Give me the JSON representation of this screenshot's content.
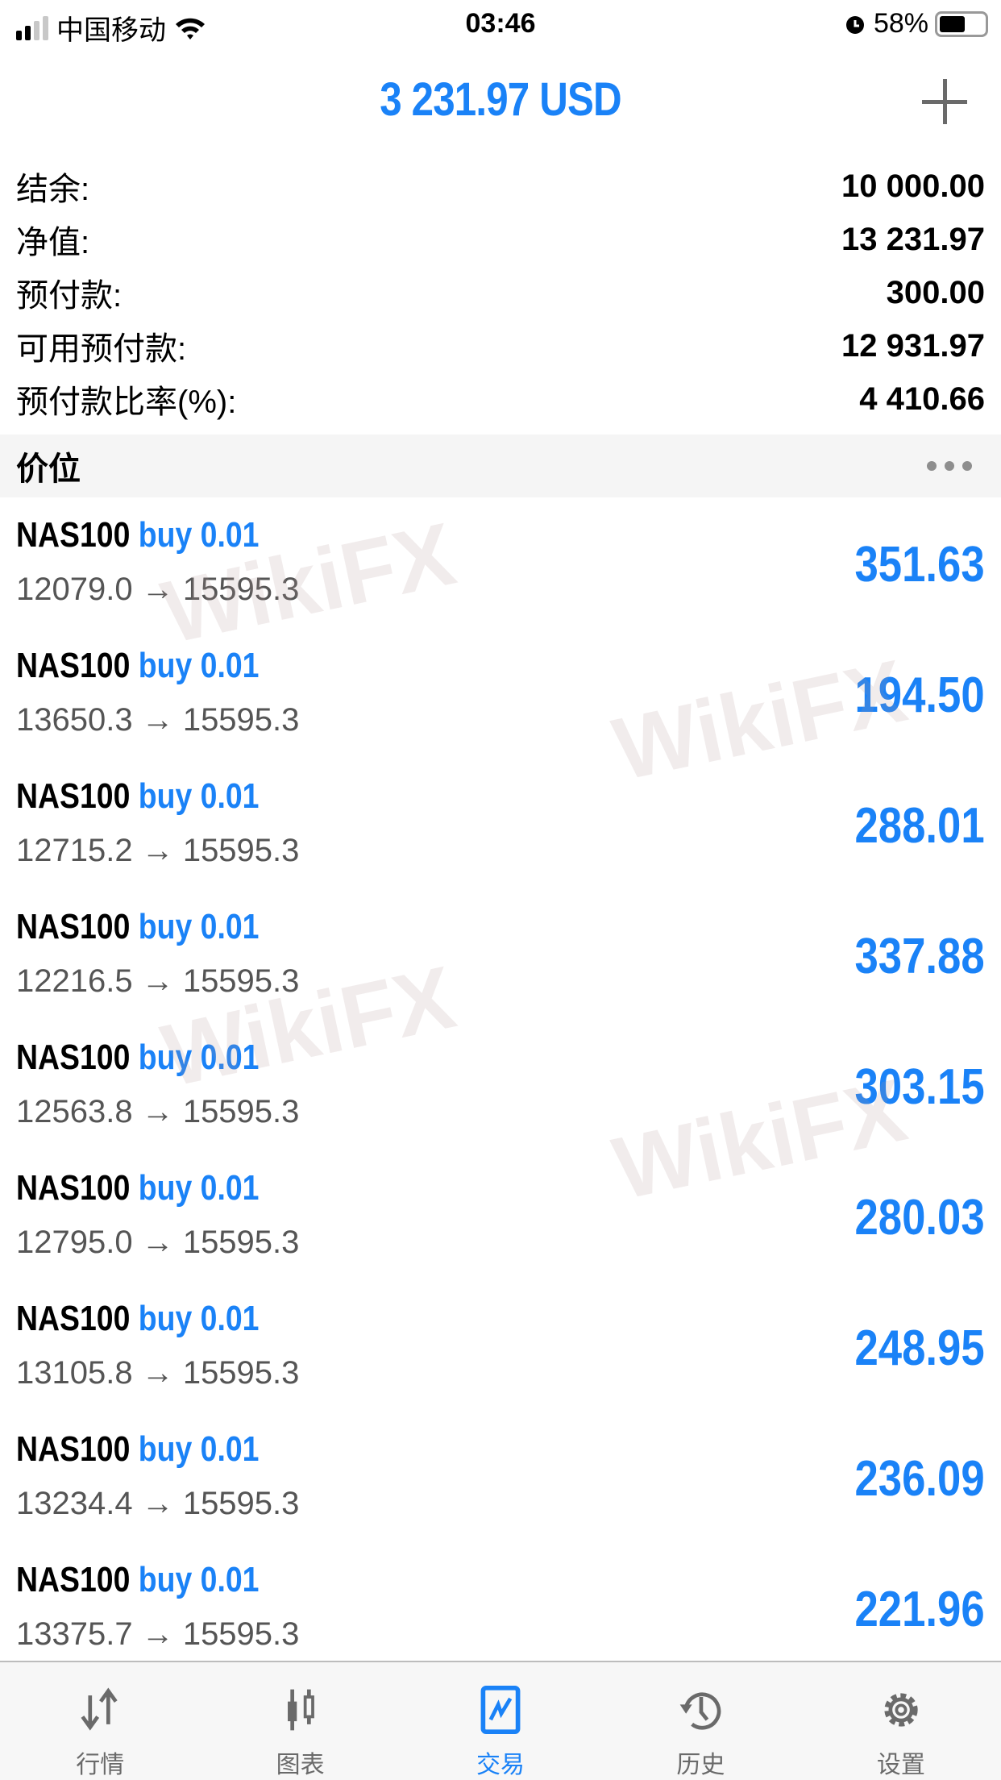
{
  "status_bar": {
    "carrier": "中国移动",
    "time": "03:46",
    "battery": "58%",
    "battery_level": 0.58
  },
  "header": {
    "title": "3 231.97 USD"
  },
  "summary": [
    {
      "label": "结余:",
      "value": "10 000.00"
    },
    {
      "label": "净值:",
      "value": "13 231.97"
    },
    {
      "label": "预付款:",
      "value": "300.00"
    },
    {
      "label": "可用预付款:",
      "value": "12 931.97"
    },
    {
      "label": "预付款比率(%):",
      "value": "4 410.66"
    }
  ],
  "section": {
    "title": "价位"
  },
  "positions": [
    {
      "symbol": "NAS100",
      "type": "buy 0.01",
      "prices": "12079.0 → 15595.3",
      "profit": "351.63"
    },
    {
      "symbol": "NAS100",
      "type": "buy 0.01",
      "prices": "13650.3 → 15595.3",
      "profit": "194.50"
    },
    {
      "symbol": "NAS100",
      "type": "buy 0.01",
      "prices": "12715.2 → 15595.3",
      "profit": "288.01"
    },
    {
      "symbol": "NAS100",
      "type": "buy 0.01",
      "prices": "12216.5 → 15595.3",
      "profit": "337.88"
    },
    {
      "symbol": "NAS100",
      "type": "buy 0.01",
      "prices": "12563.8 → 15595.3",
      "profit": "303.15"
    },
    {
      "symbol": "NAS100",
      "type": "buy 0.01",
      "prices": "12795.0 → 15595.3",
      "profit": "280.03"
    },
    {
      "symbol": "NAS100",
      "type": "buy 0.01",
      "prices": "13105.8 → 15595.3",
      "profit": "248.95"
    },
    {
      "symbol": "NAS100",
      "type": "buy 0.01",
      "prices": "13234.4 → 15595.3",
      "profit": "236.09"
    },
    {
      "symbol": "NAS100",
      "type": "buy 0.01",
      "prices": "13375.7 → 15595.3",
      "profit": "221.96"
    }
  ],
  "watermark": "WikiFX",
  "tabs": [
    {
      "label": "行情",
      "icon": "quotes-arrows-icon"
    },
    {
      "label": "图表",
      "icon": "candlestick-chart-icon"
    },
    {
      "label": "交易",
      "icon": "trade-chart-icon",
      "active": true
    },
    {
      "label": "历史",
      "icon": "history-clock-icon"
    },
    {
      "label": "设置",
      "icon": "gear-icon"
    }
  ],
  "colors": {
    "accent": "#1a82f7",
    "tab_inactive": "#6a6a6a"
  }
}
